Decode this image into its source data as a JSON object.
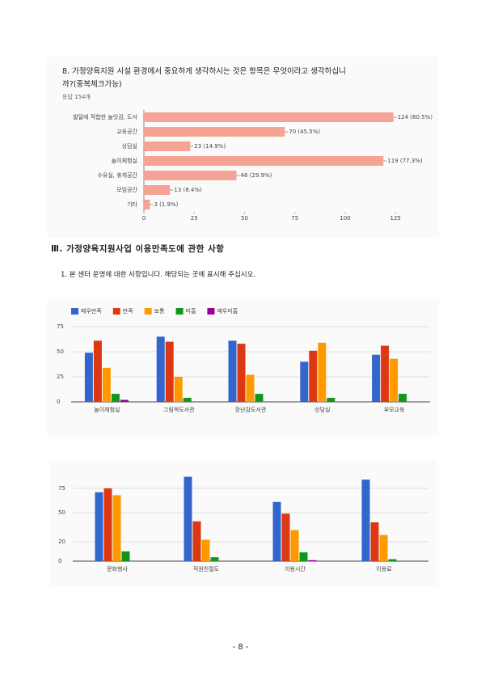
{
  "heading": "Ⅲ. 가정양육지원사업 이용만족도에 관한 사항",
  "question": "1. 본 센터 운영에 대한 사항입니다. 해당되는 곳에 표시해 주십시오.",
  "page_number": "- 8 -",
  "chart_data": [
    {
      "type": "hbar",
      "title": "8. 가정양육지원 시설 환경에서 중요하게 생각하시는 것은 항목은 무엇이라고 생각하십니까?(중복체크가능)",
      "subtitle": "응답 154개",
      "categories": [
        "발달에 적합한 놀잇감, 도서",
        "교육공간",
        "상담실",
        "놀이체험실",
        "수유실, 휴게공간",
        "모임공간",
        "기타"
      ],
      "values": [
        124,
        70,
        23,
        119,
        46,
        13,
        3
      ],
      "value_labels": [
        "124 (80.5%)",
        "70 (45.5%)",
        "23 (14.9%)",
        "119 (77.3%)",
        "46 (29.9%)",
        "13 (8.4%)",
        "3 (1.9%)"
      ],
      "color": "#f4a394",
      "xlim": [
        0,
        145
      ],
      "xticks": [
        0,
        25,
        50,
        75,
        100,
        125
      ],
      "grid": false
    },
    {
      "type": "grouped-bar",
      "categories": [
        "놀이체험실",
        "그림책도서관",
        "장난감도서관",
        "상담실",
        "부모교육"
      ],
      "series": [
        {
          "name": "매우만족",
          "color": "#3366cc",
          "values": [
            49,
            65,
            61,
            40,
            47
          ]
        },
        {
          "name": "만족",
          "color": "#dc3912",
          "values": [
            61,
            60,
            58,
            51,
            56
          ]
        },
        {
          "name": "보통",
          "color": "#ff9900",
          "values": [
            34,
            25,
            27,
            59,
            43
          ]
        },
        {
          "name": "미흡",
          "color": "#109618",
          "values": [
            8,
            4,
            8,
            4,
            8
          ]
        },
        {
          "name": "매우미흡",
          "color": "#990099",
          "values": [
            2,
            0,
            0,
            0,
            0
          ]
        }
      ],
      "ylim": [
        0,
        75
      ],
      "yticks": [
        0,
        25,
        50,
        75
      ],
      "grid": true,
      "legend": "top"
    },
    {
      "type": "grouped-bar",
      "categories": [
        "문화행사",
        "직원친절도",
        "이용시간",
        "이용료"
      ],
      "series": [
        {
          "color": "#3366cc",
          "values": [
            71,
            87,
            61,
            84
          ]
        },
        {
          "color": "#dc3912",
          "values": [
            75,
            41,
            49,
            40
          ]
        },
        {
          "color": "#ff9900",
          "values": [
            68,
            22,
            32,
            27
          ]
        },
        {
          "color": "#109618",
          "values": [
            10,
            4,
            9,
            2
          ]
        },
        {
          "color": "#990099",
          "values": [
            0,
            0,
            1,
            0
          ]
        }
      ],
      "ylim": [
        0,
        90
      ],
      "yticks": [
        75,
        50,
        20,
        0
      ],
      "grid": true
    }
  ]
}
